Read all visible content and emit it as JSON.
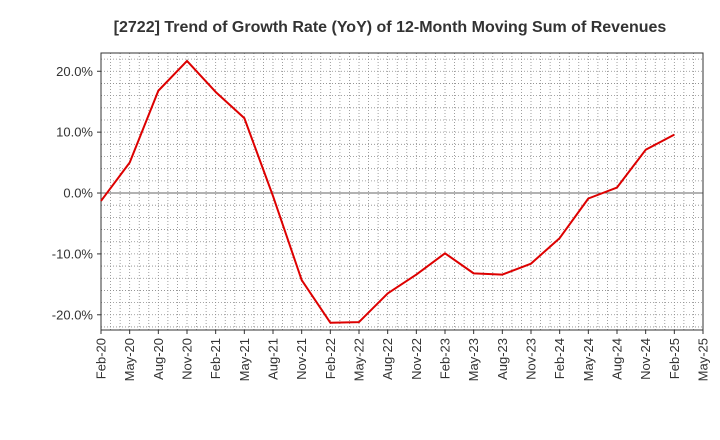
{
  "chart_data": {
    "type": "line",
    "title": "[2722]  Trend of Growth Rate (YoY) of 12-Month Moving Sum of Revenues",
    "xlabel": "",
    "ylabel": "",
    "x_ticks": [
      "Feb-20",
      "May-20",
      "Aug-20",
      "Nov-20",
      "Feb-21",
      "May-21",
      "Aug-21",
      "Nov-21",
      "Feb-22",
      "May-22",
      "Aug-22",
      "Nov-22",
      "Feb-23",
      "May-23",
      "Aug-23",
      "Nov-23",
      "Feb-24",
      "May-24",
      "Aug-24",
      "Nov-24",
      "Feb-25",
      "May-25"
    ],
    "y_ticks": [
      {
        "value": 20,
        "label": "20.0%"
      },
      {
        "value": 10,
        "label": "10.0%"
      },
      {
        "value": 0,
        "label": "0.0%"
      },
      {
        "value": -10,
        "label": "-10.0%"
      },
      {
        "value": -20,
        "label": "-20.0%"
      }
    ],
    "ylim": [
      -22.5,
      23
    ],
    "grid": true,
    "line_color": "#dd0000",
    "series": [
      {
        "x": [
          "Feb-20",
          "May-20",
          "Aug-20",
          "Nov-20",
          "Feb-21",
          "May-21",
          "Aug-21",
          "Nov-21",
          "Feb-22",
          "May-22",
          "Aug-22",
          "Nov-22",
          "Feb-23",
          "May-23",
          "Aug-23",
          "Nov-23",
          "Feb-24",
          "May-24",
          "Aug-24",
          "Nov-24",
          "Feb-25"
        ],
        "values": [
          -1.3,
          5.0,
          16.8,
          21.7,
          16.6,
          12.3,
          -0.5,
          -14.3,
          -21.3,
          -21.2,
          -16.5,
          -13.4,
          -9.9,
          -13.2,
          -13.4,
          -11.6,
          -7.4,
          -0.9,
          0.9,
          7.1,
          9.6
        ]
      }
    ]
  }
}
